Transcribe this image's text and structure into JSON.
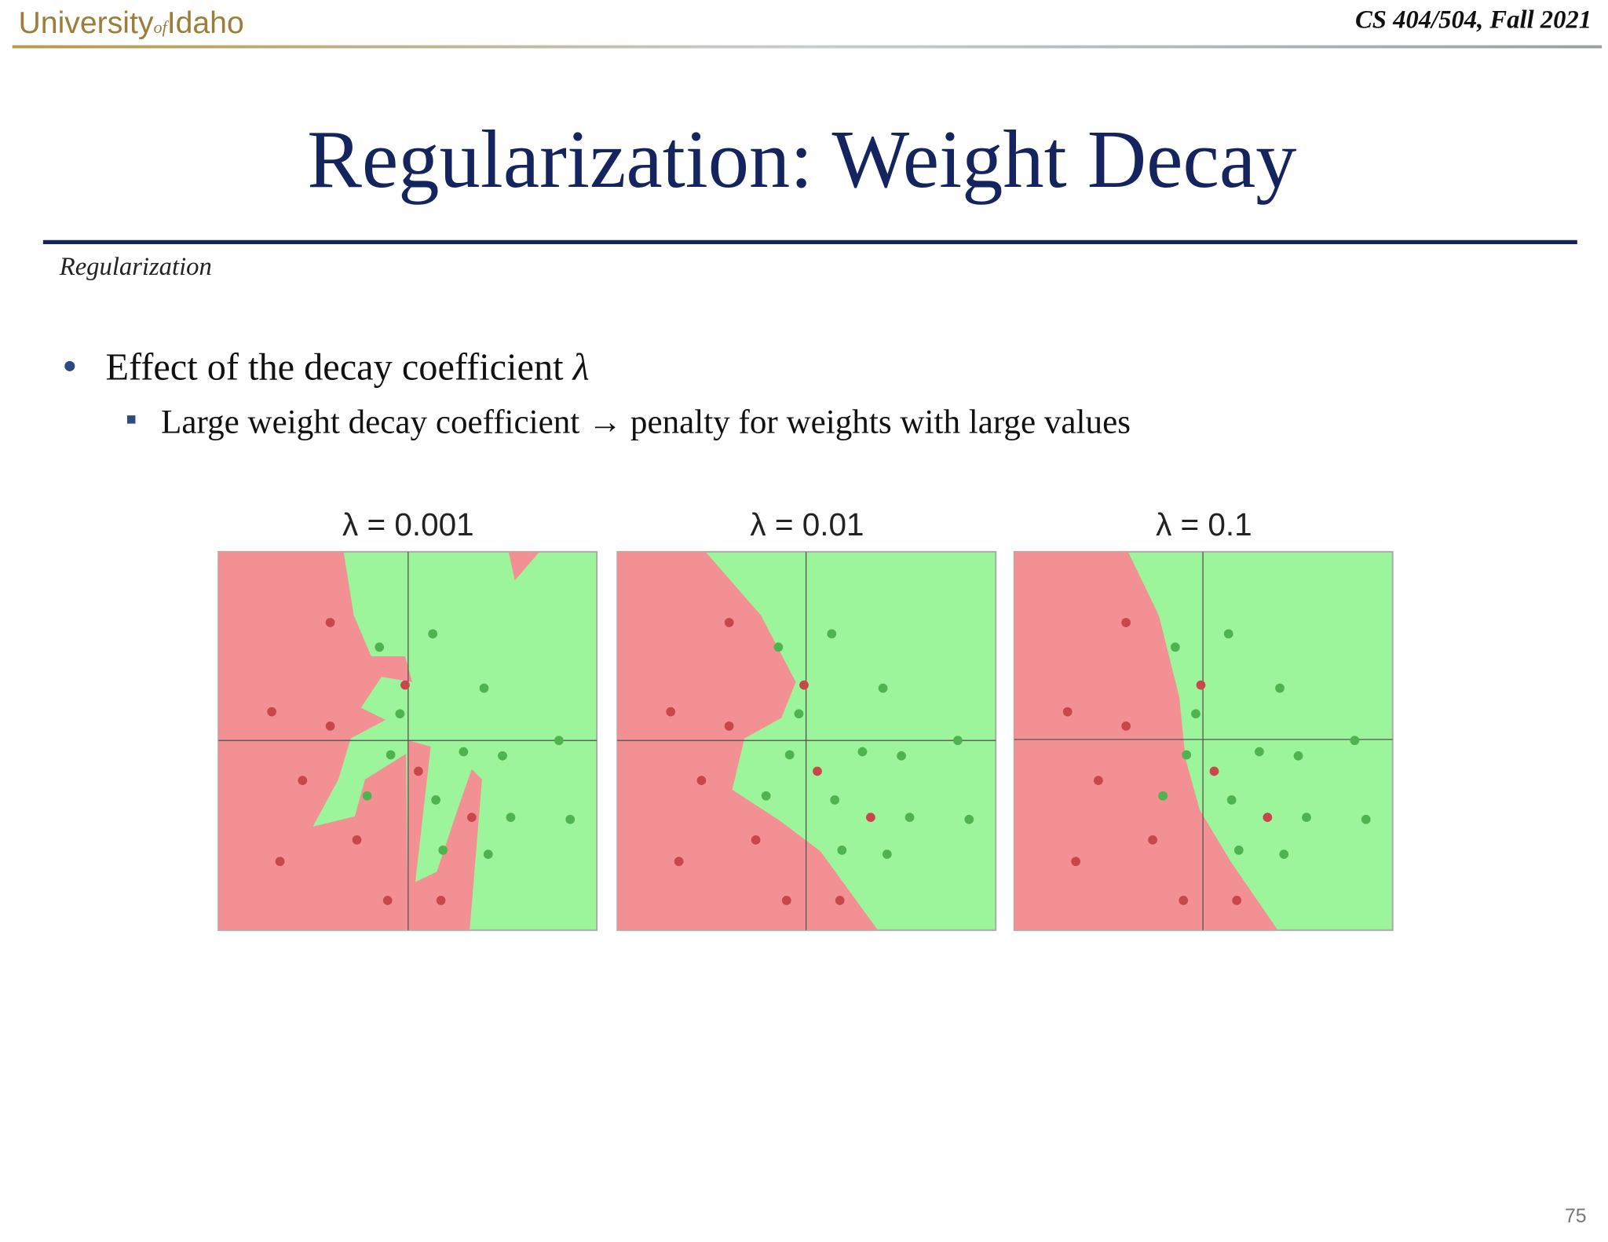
{
  "header": {
    "logo": {
      "university": "University",
      "of": "of",
      "idaho": "Idaho"
    },
    "course": "CS 404/504, Fall 2021"
  },
  "title": "Regularization: Weight Decay",
  "section": "Regularization",
  "bullets": [
    {
      "text": "Effect of the decay coefficient",
      "symbol": "λ",
      "sub": [
        "Large weight decay coefficient → penalty for weights with large values"
      ]
    }
  ],
  "figure": {
    "panels": [
      {
        "title": "λ = 0.001"
      },
      {
        "title": "λ = 0.01"
      },
      {
        "title": "λ = 0.1"
      }
    ]
  },
  "page_number": "75"
}
